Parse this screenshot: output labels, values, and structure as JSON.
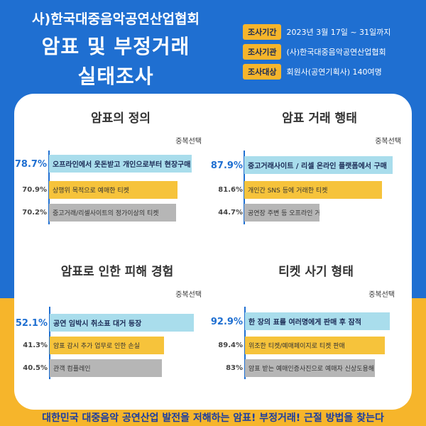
{
  "header": {
    "org": "사)한국대중음악공연산업협회",
    "title_line1": "암표 및 부정거래",
    "title_line2": "실태조사",
    "meta": [
      {
        "label": "조사기간",
        "value": "2023년 3월 17일 ~ 31일까지"
      },
      {
        "label": "조사기관",
        "value": "(사)한국대중음악공연산업협회"
      },
      {
        "label": "조사대상",
        "value": "회원사(공연기획사) 140여명"
      }
    ]
  },
  "colors": {
    "blue": "#1f6fd1",
    "yellow": "#f6b52b",
    "bar_primary": "#a9ddec",
    "bar_secondary": "#f6c33b",
    "bar_tertiary": "#b6b6b6"
  },
  "chart_data": [
    {
      "type": "bar",
      "title": "암표의 정의",
      "note": "중복선택",
      "categories": [
        "오프라인에서 웃돈받고 개인으로부터 현장구매",
        "상행위 목적으로 예매한 티켓",
        "중고거래/리셀사이트의 정가이상의 티켓"
      ],
      "values": [
        78.7,
        70.9,
        70.2
      ],
      "labels": [
        "78.7%",
        "70.9%",
        "70.2%"
      ]
    },
    {
      "type": "bar",
      "title": "암표 거래 행태",
      "note": "중복선택",
      "categories": [
        "중고거래사이트 / 리셀 온라인 플랫폼에서 구매",
        "개인간 SNS 등에 거래한 티켓",
        "공연장 주변 등 오프라인 거래 티켓"
      ],
      "values": [
        87.9,
        81.6,
        44.7
      ],
      "labels": [
        "87.9%",
        "81.6%",
        "44.7%"
      ]
    },
    {
      "type": "bar",
      "title": "암표로 인한 피해 경험",
      "note": "중복선택",
      "categories": [
        "공연 임박시 취소표 대거 등장",
        "암표 감시 추가 업무로 인한 손실",
        "관객 컴플레인"
      ],
      "values": [
        52.1,
        41.3,
        40.5
      ],
      "labels": [
        "52.1%",
        "41.3%",
        "40.5%"
      ]
    },
    {
      "type": "bar",
      "title": "티켓 사기 형태",
      "note": "중복선택",
      "categories": [
        "한 장의 표를 여러명에게 판매 후 잠적",
        "위조한 티켓/예매페이지로 티켓 판매",
        "암표 받는 예매인증사진으로 예매자 신상도용해 양도"
      ],
      "values": [
        92.9,
        89.4,
        83
      ],
      "labels": [
        "92.9%",
        "89.4%",
        "83%"
      ]
    }
  ],
  "footer": "대한민국 대중음악 공연산업 발전을 저해하는 암표! 부정거래! 근절 방법을 찾는다"
}
